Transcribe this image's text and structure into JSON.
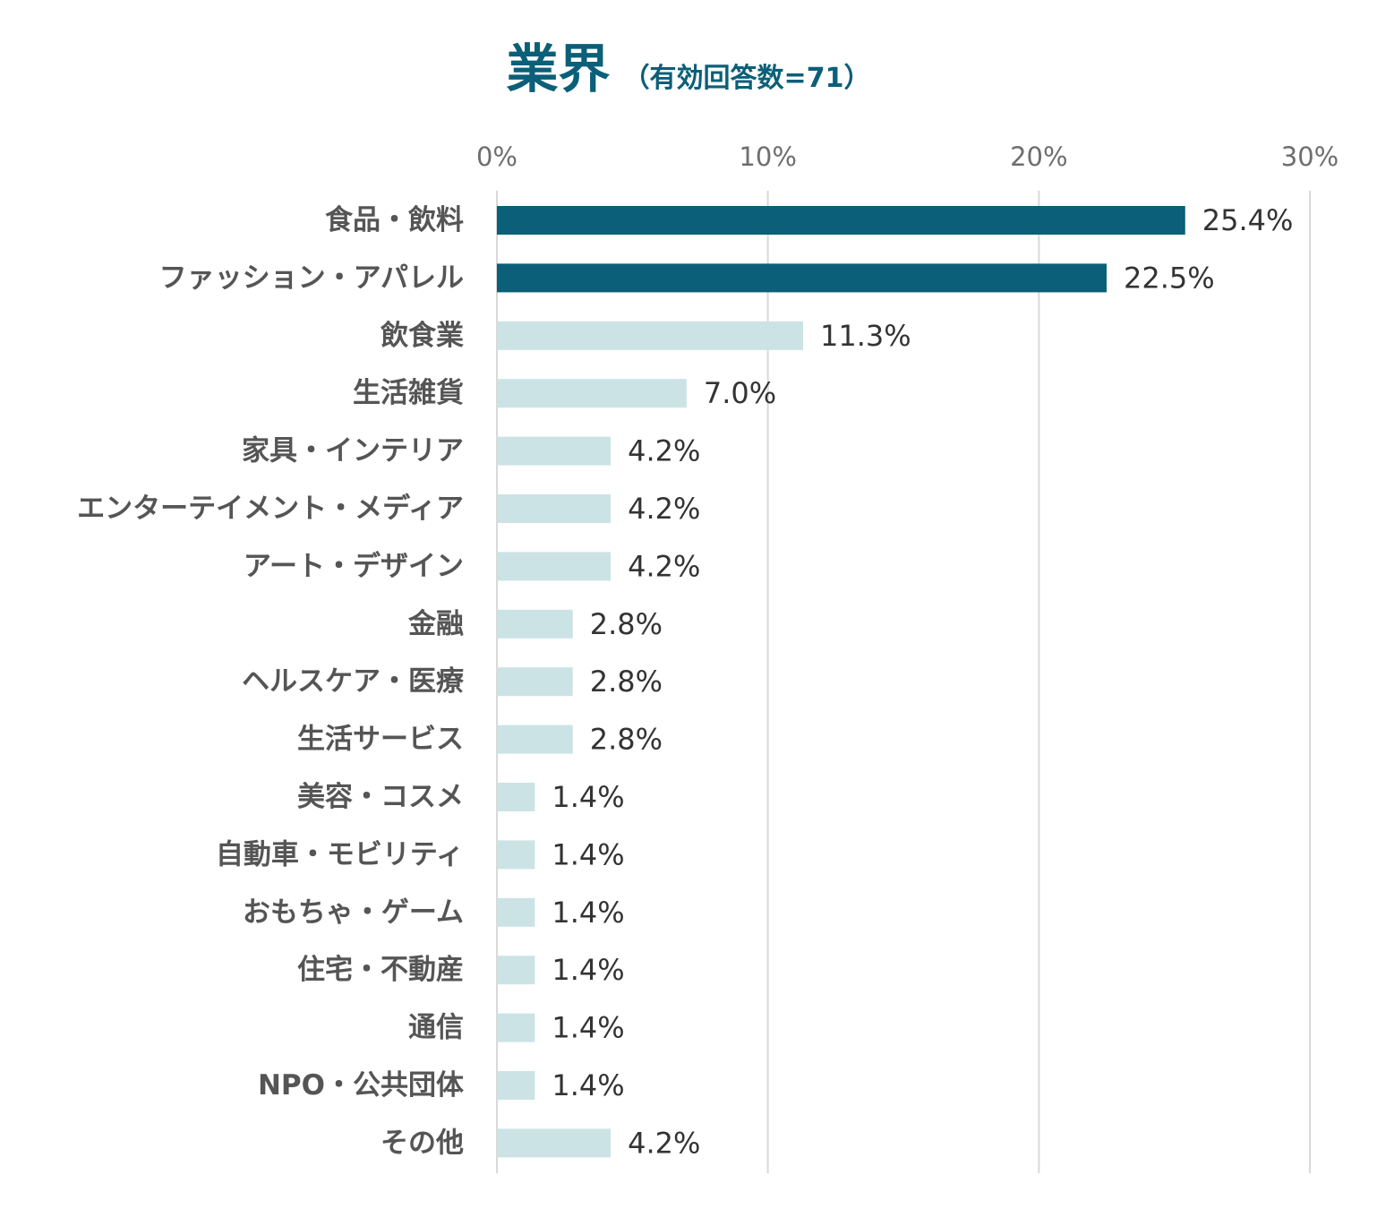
{
  "title": {
    "main": "業界",
    "sub": "（有効回答数=71）"
  },
  "colors": {
    "title": "#0b5f78",
    "highlight_bar": "#0b5f78",
    "normal_bar": "#cce3e6",
    "grid": "#d9d9d9"
  },
  "chart_data": {
    "type": "bar",
    "orientation": "horizontal",
    "title": "業界（有効回答数=71）",
    "xlabel": "",
    "ylabel": "",
    "xlim": [
      0,
      30
    ],
    "x_ticks": [
      0,
      10,
      20,
      30
    ],
    "x_tick_labels": [
      "0%",
      "10%",
      "20%",
      "30%"
    ],
    "grid": true,
    "axis_position": "top",
    "categories": [
      "食品・飲料",
      "ファッション・アパレル",
      "飲食業",
      "生活雑貨",
      "家具・インテリア",
      "エンターテイメント・メディア",
      "アート・デザイン",
      "金融",
      "ヘルスケア・医療",
      "生活サービス",
      "美容・コスメ",
      "自動車・モビリティ",
      "おもちゃ・ゲーム",
      "住宅・不動産",
      "通信",
      "NPO・公共団体",
      "その他"
    ],
    "values": [
      25.4,
      22.5,
      11.3,
      7.0,
      4.2,
      4.2,
      4.2,
      2.8,
      2.8,
      2.8,
      1.4,
      1.4,
      1.4,
      1.4,
      1.4,
      1.4,
      4.2
    ],
    "value_labels": [
      "25.4%",
      "22.5%",
      "11.3%",
      "7.0%",
      "4.2%",
      "4.2%",
      "4.2%",
      "2.8%",
      "2.8%",
      "2.8%",
      "1.4%",
      "1.4%",
      "1.4%",
      "1.4%",
      "1.4%",
      "1.4%",
      "4.2%"
    ],
    "highlighted": [
      true,
      true,
      false,
      false,
      false,
      false,
      false,
      false,
      false,
      false,
      false,
      false,
      false,
      false,
      false,
      false,
      false
    ]
  }
}
